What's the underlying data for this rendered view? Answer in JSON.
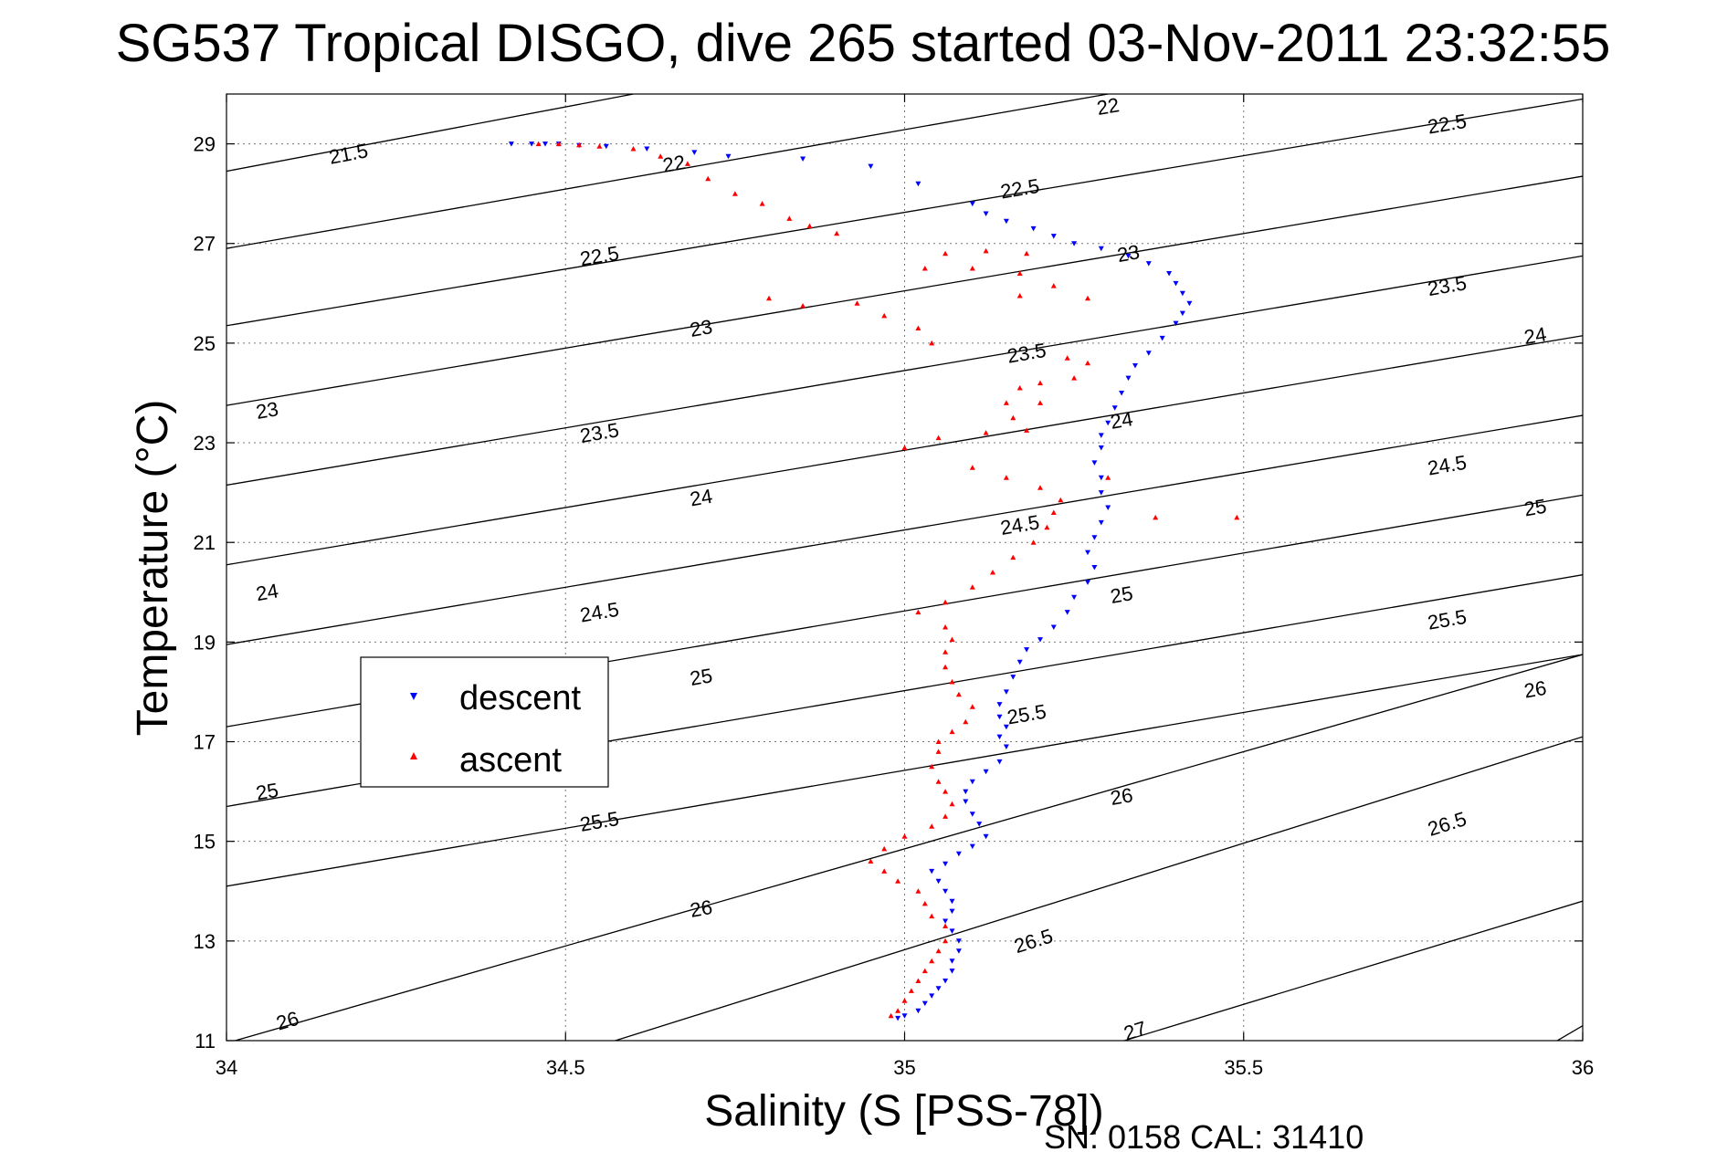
{
  "chart_data": {
    "type": "scatter",
    "title": "SG537 Tropical DISGO, dive 265 started 03-Nov-2011 23:32:55",
    "xlabel": "Salinity (S [PSS-78])",
    "ylabel": "Temperature (°C)",
    "xlim": [
      34,
      36
    ],
    "ylim": [
      11,
      30
    ],
    "xticks": [
      34,
      34.5,
      35,
      35.5,
      36
    ],
    "xtick_labels": [
      "34",
      "34.5",
      "35",
      "35.5",
      "36"
    ],
    "yticks": [
      11,
      13,
      15,
      17,
      19,
      21,
      23,
      25,
      27,
      29
    ],
    "ytick_labels": [
      "11",
      "13",
      "15",
      "17",
      "19",
      "21",
      "23",
      "25",
      "27",
      "29"
    ],
    "grid": true,
    "legend_position": "middle-left",
    "footer": "SN: 0158  CAL: 31410",
    "contours": [
      {
        "label": "21.5",
        "left": [
          34,
          28.45
        ],
        "right": [
          34.6,
          30.0
        ],
        "label_at": [
          34.18,
          28.8
        ]
      },
      {
        "label": "22",
        "left": [
          34,
          26.9
        ],
        "right": [
          35.3,
          30.0
        ],
        "label_at": [
          34.66,
          28.6
        ]
      },
      {
        "label": "22",
        "left": [
          34,
          26.9
        ],
        "right": [
          35.3,
          30.0
        ],
        "label_at": [
          35.3,
          29.75
        ]
      },
      {
        "label": "22.5",
        "left": [
          34,
          25.35
        ],
        "right": [
          36,
          29.9
        ],
        "label_at": [
          34.55,
          26.75
        ]
      },
      {
        "label": "22.5",
        "left": [
          34,
          25.35
        ],
        "right": [
          36,
          29.9
        ],
        "label_at": [
          35.17,
          28.1
        ]
      },
      {
        "label": "22.5",
        "left": [
          34,
          25.35
        ],
        "right": [
          36,
          29.9
        ],
        "label_at": [
          35.8,
          29.4
        ]
      },
      {
        "label": "23",
        "left": [
          34,
          23.75
        ],
        "right": [
          36,
          28.35
        ],
        "label_at": [
          34.06,
          23.65
        ]
      },
      {
        "label": "23",
        "left": [
          34,
          23.75
        ],
        "right": [
          36,
          28.35
        ],
        "label_at": [
          34.7,
          25.3
        ]
      },
      {
        "label": "23",
        "left": [
          34,
          23.75
        ],
        "right": [
          36,
          28.35
        ],
        "label_at": [
          35.33,
          26.8
        ]
      },
      {
        "label": "23.5",
        "left": [
          34,
          22.15
        ],
        "right": [
          36,
          26.75
        ],
        "label_at": [
          34.55,
          23.2
        ]
      },
      {
        "label": "23.5",
        "left": [
          34,
          22.15
        ],
        "right": [
          36,
          26.75
        ],
        "label_at": [
          35.18,
          24.8
        ]
      },
      {
        "label": "23.5",
        "left": [
          34,
          22.15
        ],
        "right": [
          36,
          26.75
        ],
        "label_at": [
          35.8,
          26.15
        ]
      },
      {
        "label": "24",
        "left": [
          34,
          20.55
        ],
        "right": [
          36,
          25.15
        ],
        "label_at": [
          34.06,
          20.0
        ]
      },
      {
        "label": "24",
        "left": [
          34,
          20.55
        ],
        "right": [
          36,
          25.15
        ],
        "label_at": [
          34.7,
          21.9
        ]
      },
      {
        "label": "24",
        "left": [
          34,
          20.55
        ],
        "right": [
          36,
          25.15
        ],
        "label_at": [
          35.32,
          23.45
        ]
      },
      {
        "label": "24",
        "left": [
          34,
          20.55
        ],
        "right": [
          36,
          25.15
        ],
        "label_at": [
          35.93,
          25.15
        ]
      },
      {
        "label": "24.5",
        "left": [
          34,
          18.95
        ],
        "right": [
          36,
          23.55
        ],
        "label_at": [
          34.55,
          19.6
        ]
      },
      {
        "label": "24.5",
        "left": [
          34,
          18.95
        ],
        "right": [
          36,
          23.55
        ],
        "label_at": [
          35.17,
          21.35
        ]
      },
      {
        "label": "24.5",
        "left": [
          34,
          18.95
        ],
        "right": [
          36,
          23.55
        ],
        "label_at": [
          35.8,
          22.55
        ]
      },
      {
        "label": "25",
        "left": [
          34,
          17.3
        ],
        "right": [
          36,
          21.95
        ],
        "label_at": [
          34.06,
          16.0
        ]
      },
      {
        "label": "25",
        "left": [
          34,
          17.3
        ],
        "right": [
          36,
          21.95
        ],
        "label_at": [
          34.7,
          18.3
        ]
      },
      {
        "label": "25",
        "left": [
          34,
          17.3
        ],
        "right": [
          36,
          21.95
        ],
        "label_at": [
          35.32,
          19.95
        ]
      },
      {
        "label": "25",
        "left": [
          34,
          17.3
        ],
        "right": [
          36,
          21.95
        ],
        "label_at": [
          35.93,
          21.7
        ]
      },
      {
        "label": "25.5",
        "left": [
          34,
          15.7
        ],
        "right": [
          36,
          20.35
        ],
        "label_at": [
          34.55,
          15.4
        ]
      },
      {
        "label": "25.5",
        "left": [
          34,
          15.7
        ],
        "right": [
          36,
          20.35
        ],
        "label_at": [
          35.18,
          17.55
        ]
      },
      {
        "label": "25.5",
        "left": [
          34,
          15.7
        ],
        "right": [
          36,
          20.35
        ],
        "label_at": [
          35.8,
          19.45
        ]
      },
      {
        "label": "26",
        "left": [
          34,
          10.95
        ],
        "right": [
          36,
          18.75
        ],
        "label_at": [
          34.09,
          11.4
        ]
      },
      {
        "label": "26",
        "left": [
          34,
          14.1
        ],
        "right": [
          36,
          18.75
        ],
        "label_at": [
          34.7,
          13.65
        ]
      },
      {
        "label": "26",
        "left": [
          34,
          14.1
        ],
        "right": [
          36,
          18.75
        ],
        "label_at": [
          35.32,
          15.9
        ]
      },
      {
        "label": "26",
        "left": [
          34,
          14.1
        ],
        "right": [
          36,
          18.75
        ],
        "label_at": [
          35.93,
          18.05
        ]
      },
      {
        "label": "26.5",
        "left": [
          34.55,
          10.9
        ],
        "right": [
          36,
          17.1
        ],
        "label_at": [
          35.19,
          13.0
        ]
      },
      {
        "label": "26.5",
        "left": [
          34.55,
          10.9
        ],
        "right": [
          36,
          17.1
        ],
        "label_at": [
          35.8,
          15.35
        ]
      },
      {
        "label": "27",
        "left": [
          35.3,
          10.9
        ],
        "right": [
          36,
          13.8
        ],
        "label_at": [
          35.34,
          11.2
        ]
      },
      {
        "label": "",
        "left": [
          35.95,
          10.9
        ],
        "right": [
          36,
          11.3
        ],
        "label_at": null
      }
    ],
    "series": [
      {
        "name": "descent",
        "color": "#0000ff",
        "marker": "triangle-down",
        "points": [
          [
            34.42,
            29.0
          ],
          [
            34.45,
            29.0
          ],
          [
            34.47,
            29.0
          ],
          [
            34.49,
            29.0
          ],
          [
            34.52,
            28.97
          ],
          [
            34.56,
            28.95
          ],
          [
            34.62,
            28.9
          ],
          [
            34.69,
            28.83
          ],
          [
            34.74,
            28.75
          ],
          [
            34.85,
            28.7
          ],
          [
            34.95,
            28.55
          ],
          [
            35.02,
            28.2
          ],
          [
            35.1,
            27.8
          ],
          [
            35.12,
            27.6
          ],
          [
            35.15,
            27.45
          ],
          [
            35.19,
            27.3
          ],
          [
            35.22,
            27.15
          ],
          [
            35.25,
            27.0
          ],
          [
            35.29,
            26.9
          ],
          [
            35.33,
            26.75
          ],
          [
            35.36,
            26.6
          ],
          [
            35.39,
            26.4
          ],
          [
            35.4,
            26.2
          ],
          [
            35.41,
            26.0
          ],
          [
            35.42,
            25.8
          ],
          [
            35.41,
            25.6
          ],
          [
            35.4,
            25.4
          ],
          [
            35.38,
            25.1
          ],
          [
            35.36,
            24.8
          ],
          [
            35.34,
            24.55
          ],
          [
            35.33,
            24.3
          ],
          [
            35.32,
            24.0
          ],
          [
            35.31,
            23.7
          ],
          [
            35.3,
            23.4
          ],
          [
            35.29,
            23.15
          ],
          [
            35.29,
            22.9
          ],
          [
            35.28,
            22.6
          ],
          [
            35.29,
            22.3
          ],
          [
            35.29,
            22.0
          ],
          [
            35.3,
            21.7
          ],
          [
            35.29,
            21.4
          ],
          [
            35.28,
            21.1
          ],
          [
            35.27,
            20.8
          ],
          [
            35.28,
            20.5
          ],
          [
            35.27,
            20.2
          ],
          [
            35.25,
            19.9
          ],
          [
            35.24,
            19.6
          ],
          [
            35.22,
            19.3
          ],
          [
            35.2,
            19.05
          ],
          [
            35.18,
            18.85
          ],
          [
            35.17,
            18.6
          ],
          [
            35.16,
            18.3
          ],
          [
            35.15,
            18.0
          ],
          [
            35.14,
            17.75
          ],
          [
            35.14,
            17.5
          ],
          [
            35.15,
            17.3
          ],
          [
            35.14,
            17.1
          ],
          [
            35.15,
            16.9
          ],
          [
            35.14,
            16.6
          ],
          [
            35.12,
            16.4
          ],
          [
            35.1,
            16.2
          ],
          [
            35.09,
            16.0
          ],
          [
            35.09,
            15.8
          ],
          [
            35.1,
            15.55
          ],
          [
            35.11,
            15.35
          ],
          [
            35.12,
            15.1
          ],
          [
            35.1,
            14.9
          ],
          [
            35.08,
            14.75
          ],
          [
            35.06,
            14.55
          ],
          [
            35.04,
            14.4
          ],
          [
            35.05,
            14.2
          ],
          [
            35.06,
            14.0
          ],
          [
            35.07,
            13.8
          ],
          [
            35.07,
            13.6
          ],
          [
            35.06,
            13.4
          ],
          [
            35.07,
            13.2
          ],
          [
            35.08,
            13.0
          ],
          [
            35.08,
            12.8
          ],
          [
            35.07,
            12.6
          ],
          [
            35.07,
            12.4
          ],
          [
            35.06,
            12.2
          ],
          [
            35.05,
            12.05
          ],
          [
            35.04,
            11.9
          ],
          [
            35.03,
            11.75
          ],
          [
            35.02,
            11.6
          ],
          [
            35.0,
            11.5
          ],
          [
            34.99,
            11.45
          ]
        ]
      },
      {
        "name": "ascent",
        "color": "#ff0000",
        "marker": "triangle-up",
        "points": [
          [
            34.46,
            29.0
          ],
          [
            34.49,
            29.0
          ],
          [
            34.52,
            28.98
          ],
          [
            34.55,
            28.95
          ],
          [
            34.6,
            28.9
          ],
          [
            34.64,
            28.75
          ],
          [
            34.68,
            28.6
          ],
          [
            34.71,
            28.3
          ],
          [
            34.75,
            28.0
          ],
          [
            34.79,
            27.8
          ],
          [
            34.83,
            27.5
          ],
          [
            34.86,
            27.35
          ],
          [
            34.9,
            27.2
          ],
          [
            34.8,
            25.9
          ],
          [
            34.85,
            25.75
          ],
          [
            34.93,
            25.8
          ],
          [
            34.97,
            25.55
          ],
          [
            35.02,
            25.3
          ],
          [
            35.04,
            25.0
          ],
          [
            35.03,
            26.5
          ],
          [
            35.06,
            26.8
          ],
          [
            35.12,
            26.85
          ],
          [
            35.18,
            26.8
          ],
          [
            35.1,
            26.5
          ],
          [
            35.17,
            26.4
          ],
          [
            35.22,
            26.15
          ],
          [
            35.27,
            25.9
          ],
          [
            35.17,
            25.95
          ],
          [
            35.24,
            24.7
          ],
          [
            35.27,
            24.6
          ],
          [
            35.25,
            24.3
          ],
          [
            35.2,
            24.2
          ],
          [
            35.17,
            24.1
          ],
          [
            35.15,
            23.8
          ],
          [
            35.16,
            23.5
          ],
          [
            35.18,
            23.25
          ],
          [
            35.12,
            23.2
          ],
          [
            35.05,
            23.1
          ],
          [
            35.0,
            22.9
          ],
          [
            35.1,
            22.5
          ],
          [
            35.15,
            22.3
          ],
          [
            35.2,
            22.1
          ],
          [
            35.23,
            21.85
          ],
          [
            35.22,
            21.6
          ],
          [
            35.21,
            21.3
          ],
          [
            35.19,
            21.0
          ],
          [
            35.16,
            20.7
          ],
          [
            35.13,
            20.4
          ],
          [
            35.1,
            20.1
          ],
          [
            35.06,
            19.8
          ],
          [
            35.02,
            19.6
          ],
          [
            35.06,
            19.3
          ],
          [
            35.07,
            19.05
          ],
          [
            35.06,
            18.8
          ],
          [
            35.06,
            18.5
          ],
          [
            35.07,
            18.2
          ],
          [
            35.08,
            17.95
          ],
          [
            35.1,
            17.7
          ],
          [
            35.09,
            17.4
          ],
          [
            35.07,
            17.2
          ],
          [
            35.05,
            17.0
          ],
          [
            35.05,
            16.8
          ],
          [
            35.04,
            16.5
          ],
          [
            35.05,
            16.2
          ],
          [
            35.06,
            16.0
          ],
          [
            35.07,
            15.75
          ],
          [
            35.06,
            15.5
          ],
          [
            35.04,
            15.3
          ],
          [
            35.0,
            15.1
          ],
          [
            34.97,
            14.85
          ],
          [
            34.95,
            14.6
          ],
          [
            34.97,
            14.4
          ],
          [
            34.99,
            14.2
          ],
          [
            35.02,
            14.0
          ],
          [
            35.03,
            13.75
          ],
          [
            35.04,
            13.5
          ],
          [
            35.06,
            13.3
          ],
          [
            35.06,
            13.0
          ],
          [
            35.05,
            12.8
          ],
          [
            35.04,
            12.6
          ],
          [
            35.03,
            12.4
          ],
          [
            35.02,
            12.2
          ],
          [
            35.01,
            12.0
          ],
          [
            35.0,
            11.8
          ],
          [
            34.99,
            11.6
          ],
          [
            34.98,
            11.5
          ],
          [
            35.3,
            22.3
          ],
          [
            35.37,
            21.5
          ],
          [
            35.49,
            21.5
          ],
          [
            35.2,
            23.8
          ]
        ]
      }
    ]
  }
}
